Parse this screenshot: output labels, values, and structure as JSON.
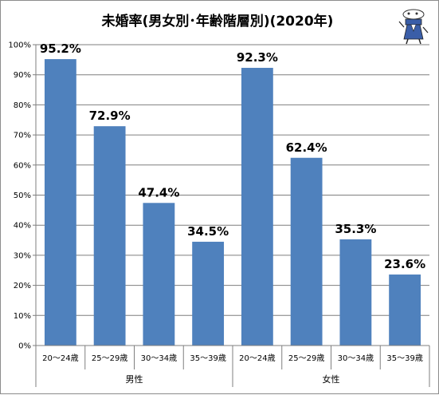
{
  "chart_data": {
    "type": "bar",
    "title": "未婚率(男女別･年齢階層別)(2020年)",
    "xlabel": "",
    "ylabel": "",
    "ylim": [
      0,
      100
    ],
    "yticks": [
      "0%",
      "10%",
      "20%",
      "30%",
      "40%",
      "50%",
      "60%",
      "70%",
      "80%",
      "90%",
      "100%"
    ],
    "grid": true,
    "groups": [
      {
        "label": "男性",
        "categories": [
          "20〜24歳",
          "25〜29歳",
          "30〜34歳",
          "35〜39歳"
        ],
        "values": [
          95.2,
          72.9,
          47.4,
          34.5
        ],
        "labels": [
          "95.2%",
          "72.9%",
          "47.4%",
          "34.5%"
        ]
      },
      {
        "label": "女性",
        "categories": [
          "20〜24歳",
          "25〜29歳",
          "30〜34歳",
          "35〜39歳"
        ],
        "values": [
          92.3,
          62.4,
          35.3,
          23.6
        ],
        "labels": [
          "92.3%",
          "62.4%",
          "35.3%",
          "23.6%"
        ]
      }
    ],
    "bar_color": "#4f81bd"
  },
  "mascot": {
    "icon": "mascot-character-icon"
  }
}
